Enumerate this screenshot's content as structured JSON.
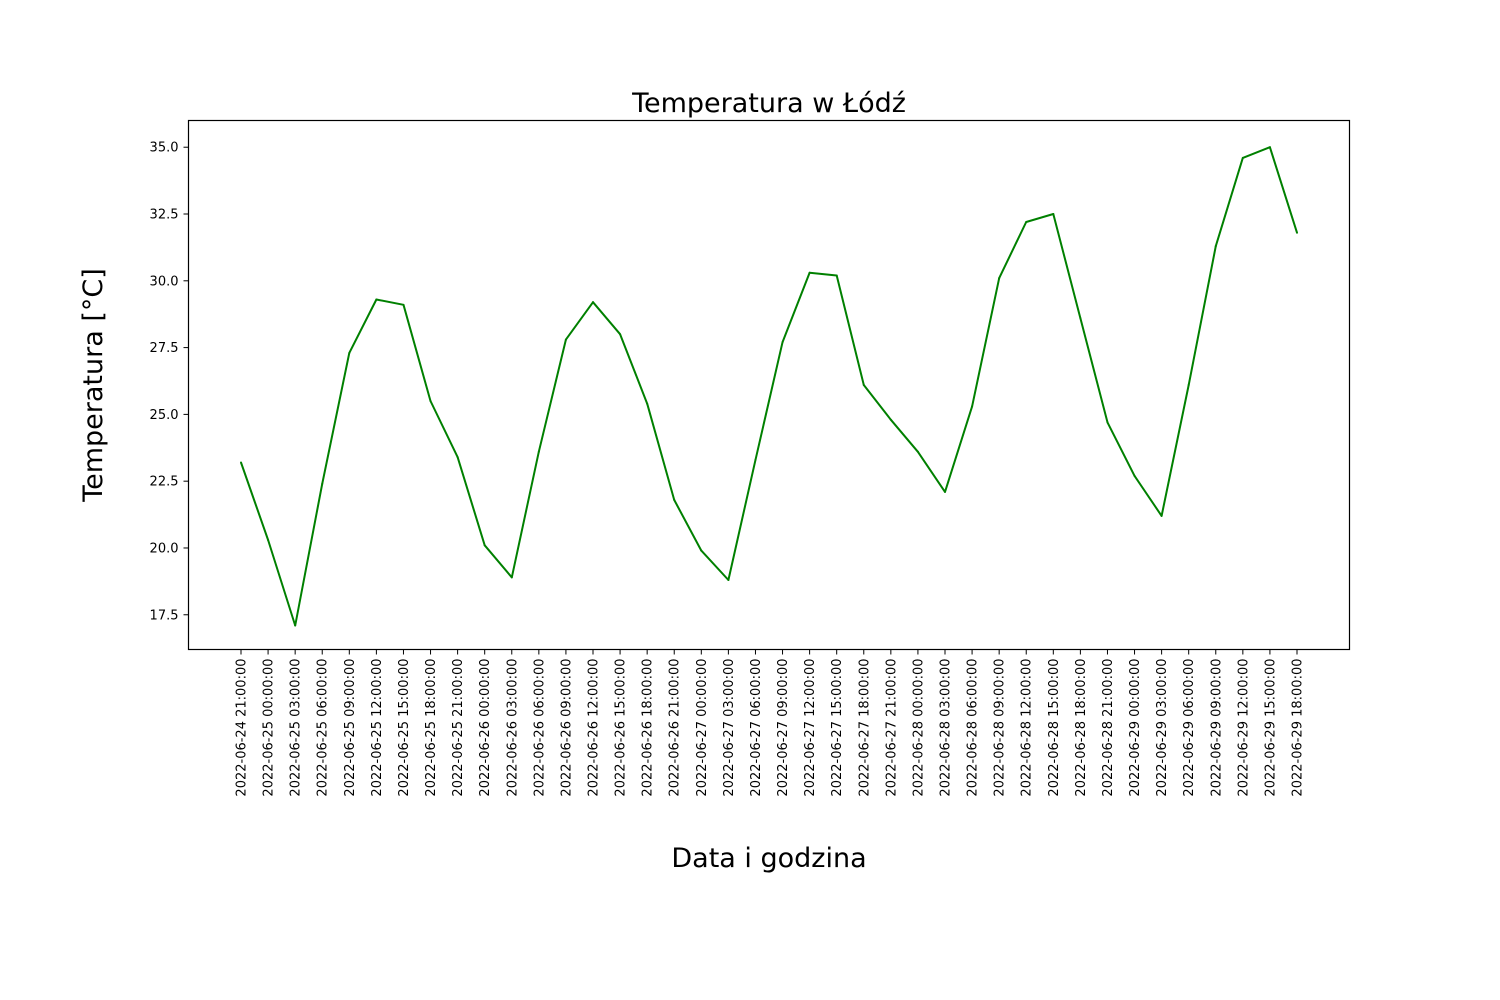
{
  "chart_data": {
    "type": "line",
    "title": "Temperatura w Łódź",
    "xlabel": "Data i godzina",
    "ylabel": "Temperatura [°C]",
    "ylim": [
      16.2,
      36.0
    ],
    "yticks": [
      "17.5",
      "20.0",
      "22.5",
      "25.0",
      "27.5",
      "30.0",
      "32.5",
      "35.0"
    ],
    "grid": false,
    "legend": "none",
    "line_color": "#008000",
    "x": [
      "2022-06-24 21:00:00",
      "2022-06-25 00:00:00",
      "2022-06-25 03:00:00",
      "2022-06-25 06:00:00",
      "2022-06-25 09:00:00",
      "2022-06-25 12:00:00",
      "2022-06-25 15:00:00",
      "2022-06-25 18:00:00",
      "2022-06-25 21:00:00",
      "2022-06-26 00:00:00",
      "2022-06-26 03:00:00",
      "2022-06-26 06:00:00",
      "2022-06-26 09:00:00",
      "2022-06-26 12:00:00",
      "2022-06-26 15:00:00",
      "2022-06-26 18:00:00",
      "2022-06-26 21:00:00",
      "2022-06-27 00:00:00",
      "2022-06-27 03:00:00",
      "2022-06-27 06:00:00",
      "2022-06-27 09:00:00",
      "2022-06-27 12:00:00",
      "2022-06-27 15:00:00",
      "2022-06-27 18:00:00",
      "2022-06-27 21:00:00",
      "2022-06-28 00:00:00",
      "2022-06-28 03:00:00",
      "2022-06-28 06:00:00",
      "2022-06-28 09:00:00",
      "2022-06-28 12:00:00",
      "2022-06-28 15:00:00",
      "2022-06-28 18:00:00",
      "2022-06-28 21:00:00",
      "2022-06-29 00:00:00",
      "2022-06-29 03:00:00",
      "2022-06-29 06:00:00",
      "2022-06-29 09:00:00",
      "2022-06-29 12:00:00",
      "2022-06-29 15:00:00",
      "2022-06-29 18:00:00"
    ],
    "series": [
      {
        "values": [
          23.2,
          20.3,
          17.1,
          22.4,
          27.3,
          29.3,
          29.1,
          25.5,
          23.4,
          20.1,
          18.9,
          23.6,
          27.8,
          29.2,
          28.0,
          25.4,
          21.8,
          19.9,
          18.8,
          23.3,
          27.7,
          30.3,
          30.2,
          26.1,
          24.8,
          23.6,
          22.1,
          25.3,
          30.1,
          32.2,
          32.5,
          28.6,
          24.7,
          22.7,
          21.2,
          26.1,
          31.3,
          34.6,
          35.0,
          31.8
        ]
      }
    ]
  }
}
